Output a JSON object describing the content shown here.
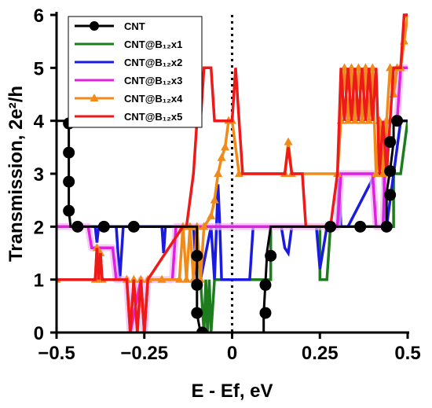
{
  "chart_data": {
    "type": "line",
    "xlabel": "E - Ef, eV",
    "ylabel": "Transmission, 2e²/h",
    "xlim": [
      -0.5,
      0.5
    ],
    "ylim": [
      0,
      6
    ],
    "xticks": [
      -0.5,
      -0.25,
      0,
      0.25,
      0.5
    ],
    "xtick_labels": [
      "−0.5",
      "−0.25",
      "0",
      "0.25",
      "0.5"
    ],
    "yticks": [
      0,
      1,
      2,
      3,
      4,
      5,
      6
    ],
    "ytick_labels": [
      "0",
      "1",
      "2",
      "3",
      "4",
      "5",
      "6"
    ],
    "fermi_level_line": 0,
    "legend_position": "top-left",
    "series": [
      {
        "name": "CNT",
        "color": "#000000",
        "marker": "circle",
        "x": [
          -0.5,
          -0.48,
          -0.465,
          -0.465,
          -0.465,
          -0.465,
          -0.46,
          -0.455,
          -0.45,
          -0.44,
          -0.1,
          -0.1,
          -0.1,
          -0.1,
          -0.09,
          -0.085,
          -0.08,
          -0.07,
          0.09,
          0.09,
          0.095,
          0.1,
          0.11,
          0.44,
          0.44,
          0.45,
          0.46,
          0.46,
          0.48,
          0.5
        ],
        "y": [
          4,
          4,
          4,
          3.4,
          2.85,
          2.3,
          2,
          2,
          2,
          2,
          2,
          1.55,
          0.95,
          0.35,
          0,
          0,
          0,
          0,
          0,
          0.35,
          0.95,
          1.55,
          2,
          2,
          2.65,
          3.05,
          3.6,
          4,
          4,
          4
        ],
        "marker_x": [
          -0.465,
          -0.465,
          -0.465,
          -0.465,
          -0.44,
          -0.365,
          -0.28,
          -0.1,
          -0.1,
          -0.1,
          -0.085,
          0.095,
          0.095,
          0.11,
          0.28,
          0.365,
          0.44,
          0.45,
          0.45,
          0.45,
          0.47
        ],
        "marker_y": [
          3.95,
          3.4,
          2.85,
          2.3,
          2,
          2,
          2,
          1.45,
          0.9,
          0.37,
          0,
          0.37,
          0.9,
          1.45,
          2,
          2,
          2,
          2.6,
          3.05,
          3.6,
          4
        ]
      },
      {
        "name": "CNT@B₁₂x1",
        "color": "#1d7d1d",
        "x": [
          -0.5,
          -0.1,
          -0.1,
          -0.09,
          -0.08,
          -0.075,
          -0.07,
          -0.065,
          -0.06,
          -0.05,
          0.11,
          0.11,
          0.12,
          0.25,
          0.25,
          0.27,
          0.28,
          0.46,
          0.46,
          0.48,
          0.5
        ],
        "y": [
          2,
          2,
          1,
          1,
          0,
          1,
          0,
          1,
          0,
          1,
          1,
          2,
          2,
          2,
          1,
          1,
          2,
          2,
          3,
          3,
          4
        ]
      },
      {
        "name": "CNT@B₁₂x2",
        "color": "#1a1ae0",
        "x": [
          -0.5,
          -0.39,
          -0.385,
          -0.38,
          -0.37,
          -0.33,
          -0.32,
          -0.31,
          -0.2,
          -0.195,
          -0.19,
          -0.18,
          -0.11,
          -0.1,
          -0.09,
          -0.06,
          -0.05,
          -0.04,
          -0.035,
          -0.03,
          -0.02,
          0.05,
          0.06,
          0.14,
          0.15,
          0.16,
          0.17,
          0.24,
          0.25,
          0.27,
          0.3,
          0.305,
          0.31,
          0.32,
          0.33,
          0.4,
          0.41,
          0.43,
          0.44,
          0.48,
          0.5
        ],
        "y": [
          2,
          2,
          1.7,
          2,
          2,
          2,
          1,
          2,
          2,
          1.5,
          2,
          2,
          2,
          1,
          1,
          2,
          1,
          2.8,
          2,
          1,
          1,
          1,
          2,
          2,
          1.6,
          1.5,
          2,
          2,
          1.2,
          2,
          2,
          2.9,
          2,
          2,
          2,
          2.9,
          3,
          3,
          2,
          4,
          4
        ]
      },
      {
        "name": "CNT@B₁₂x3",
        "color": "#e020e0",
        "x": [
          -0.5,
          -0.41,
          -0.4,
          -0.34,
          -0.33,
          -0.3,
          -0.29,
          -0.26,
          -0.25,
          -0.24,
          -0.23,
          -0.17,
          -0.16,
          -0.12,
          -0.11,
          0.22,
          0.23,
          0.3,
          0.31,
          0.4,
          0.41,
          0.43,
          0.44,
          0.47,
          0.48,
          0.5
        ],
        "y": [
          2,
          2,
          1.6,
          1.6,
          1,
          1,
          0,
          1,
          0,
          1,
          1,
          1,
          2,
          2,
          2,
          2,
          2,
          2,
          3,
          3,
          2,
          2,
          4,
          4,
          5,
          5
        ]
      },
      {
        "name": "CNT@B₁₂x4",
        "color": "#f08a1a",
        "marker": "triangle",
        "x": [
          -0.5,
          -0.39,
          -0.385,
          -0.38,
          -0.375,
          -0.37,
          -0.3,
          -0.29,
          -0.28,
          -0.27,
          -0.26,
          -0.25,
          -0.24,
          -0.2,
          -0.15,
          -0.14,
          -0.13,
          -0.12,
          -0.11,
          -0.1,
          -0.09,
          -0.08,
          -0.06,
          -0.05,
          -0.04,
          -0.03,
          -0.02,
          -0.01,
          0.0,
          0.02,
          0.15,
          0.16,
          0.17,
          0.3,
          0.31,
          0.32,
          0.33,
          0.34,
          0.35,
          0.36,
          0.37,
          0.38,
          0.39,
          0.4,
          0.41,
          0.42,
          0.43,
          0.44,
          0.45,
          0.46,
          0.47,
          0.48,
          0.49,
          0.5
        ],
        "y": [
          1,
          1,
          1.6,
          1,
          1.5,
          1,
          1,
          0,
          1,
          0,
          1,
          0,
          1,
          1,
          1,
          2,
          1,
          2,
          1,
          2,
          1,
          2,
          2.2,
          2.5,
          3,
          3.3,
          3.5,
          4,
          4,
          3,
          3,
          3.6,
          3,
          3,
          4,
          5,
          4,
          5,
          4,
          5,
          4,
          5,
          4,
          5,
          3,
          4,
          3,
          4,
          5,
          4.5,
          5,
          5,
          5.5,
          6
        ]
      },
      {
        "name": "CNT@B₁₂x5",
        "color": "#ee1a1a",
        "x": [
          -0.5,
          -0.39,
          -0.385,
          -0.38,
          -0.375,
          -0.37,
          -0.3,
          -0.29,
          -0.28,
          -0.27,
          -0.26,
          -0.25,
          -0.24,
          -0.14,
          -0.13,
          -0.11,
          -0.1,
          -0.09,
          -0.08,
          -0.06,
          -0.05,
          -0.04,
          -0.03,
          0.0,
          0.01,
          0.02,
          0.03,
          0.15,
          0.16,
          0.17,
          0.2,
          0.21,
          0.28,
          0.3,
          0.31,
          0.32,
          0.33,
          0.34,
          0.35,
          0.36,
          0.37,
          0.38,
          0.39,
          0.4,
          0.41,
          0.42,
          0.43,
          0.44,
          0.46,
          0.47,
          0.48,
          0.49,
          0.5
        ],
        "y": [
          1,
          1,
          1.6,
          1,
          1.5,
          1,
          1,
          0,
          1,
          0,
          1,
          0,
          1,
          2,
          2,
          3,
          4,
          4,
          5,
          5,
          4,
          4,
          4,
          4,
          5,
          4,
          3,
          3,
          3.5,
          3,
          3,
          2,
          2,
          3,
          5,
          4,
          5,
          4,
          5,
          4,
          5,
          4,
          5,
          4,
          5,
          3,
          4,
          3,
          5,
          5,
          5,
          6,
          6
        ]
      }
    ]
  }
}
